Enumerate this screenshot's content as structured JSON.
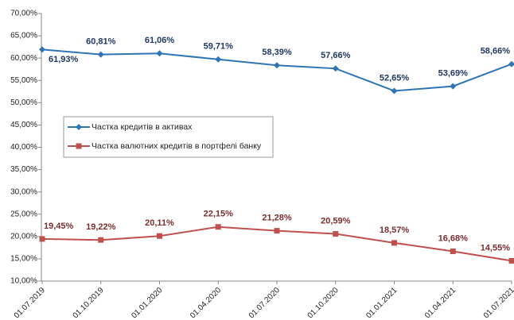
{
  "chart_data": {
    "type": "line",
    "categories": [
      "01.07.2019",
      "01.10.2019",
      "01.01.2020",
      "01.04.2020",
      "01.07.2020",
      "01.10.2020",
      "01.01.2021",
      "01.04.2021",
      "01.07.2021"
    ],
    "series": [
      {
        "name": "Частка кредитів в активах",
        "color": "#2e75b6",
        "marker": "diamond",
        "values": [
          61.93,
          60.81,
          61.06,
          59.71,
          58.39,
          57.66,
          52.65,
          53.69,
          58.66
        ],
        "value_labels": [
          "61,93%",
          "60,81%",
          "61,06%",
          "59,71%",
          "58,39%",
          "57,66%",
          "52,65%",
          "53,69%",
          "58,66%"
        ]
      },
      {
        "name": "Частка валютних кредитів в портфелі банку",
        "color": "#c0504d",
        "marker": "square",
        "values": [
          19.45,
          19.22,
          20.11,
          22.15,
          21.28,
          20.59,
          18.57,
          16.68,
          14.55
        ],
        "value_labels": [
          "19,45%",
          "19,22%",
          "20,11%",
          "22,15%",
          "21,28%",
          "20,59%",
          "18,57%",
          "16,68%",
          "14,55%"
        ]
      }
    ],
    "ylim": [
      10,
      70
    ],
    "yticks": [
      {
        "value": 10,
        "label": "10,00%"
      },
      {
        "value": 15,
        "label": "15,00%"
      },
      {
        "value": 20,
        "label": "20,00%"
      },
      {
        "value": 25,
        "label": "25,00%"
      },
      {
        "value": 30,
        "label": "30,00%"
      },
      {
        "value": 35,
        "label": "35,00%"
      },
      {
        "value": 40,
        "label": "40,00%"
      },
      {
        "value": 45,
        "label": "45,00%"
      },
      {
        "value": 50,
        "label": "50,00%"
      },
      {
        "value": 55,
        "label": "55,00%"
      },
      {
        "value": 60,
        "label": "60,00%"
      },
      {
        "value": 65,
        "label": "65,00%"
      },
      {
        "value": 70,
        "label": "70,00%"
      }
    ],
    "grid": false
  }
}
